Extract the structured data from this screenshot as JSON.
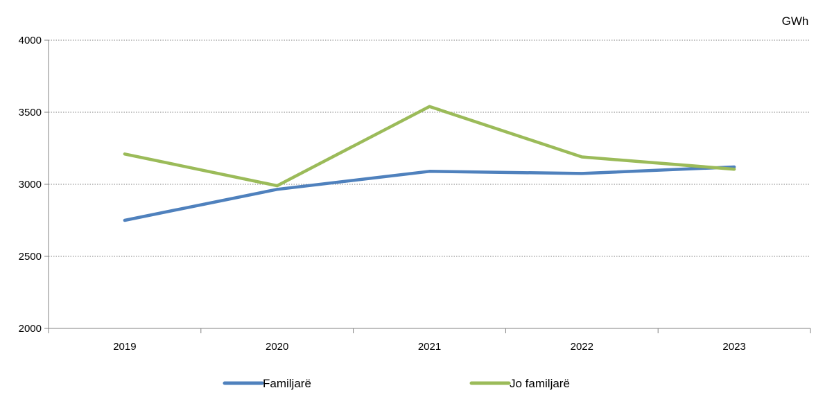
{
  "chart_data": {
    "type": "line",
    "unit_label": "GWh",
    "categories": [
      "2019",
      "2020",
      "2021",
      "2022",
      "2023"
    ],
    "ylim": [
      2000,
      4000
    ],
    "yticks": [
      2000,
      2500,
      3000,
      3500,
      4000
    ],
    "grid": true,
    "legend_position": "bottom",
    "series": [
      {
        "name": "Familjarë",
        "color": "#4f81bd",
        "values": [
          2750,
          2965,
          3090,
          3075,
          3120
        ]
      },
      {
        "name": "Jo familjarë",
        "color": "#9bbb59",
        "values": [
          3210,
          2990,
          3540,
          3190,
          3105
        ]
      }
    ]
  }
}
